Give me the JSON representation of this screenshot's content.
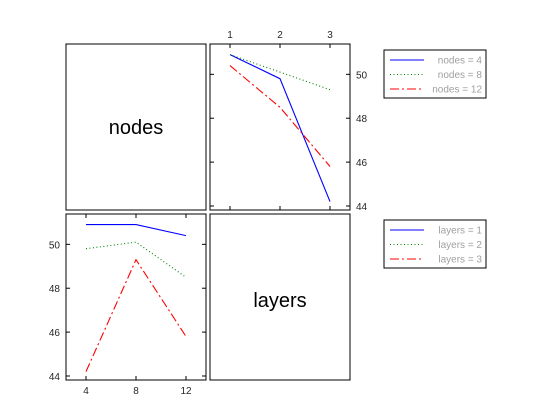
{
  "chart_data": {
    "type": "line",
    "layout": "interaction-plot-matrix",
    "diagonal_labels": [
      "nodes",
      "layers"
    ],
    "grid": false,
    "panels": [
      {
        "id": "layers-vs-nodes",
        "x": [
          1,
          2,
          3
        ],
        "xticks": [
          "1",
          "2",
          "3"
        ],
        "xtick_position": "top",
        "ylim": [
          44,
          51.2
        ],
        "yticks": [
          "44",
          "46",
          "48",
          "50"
        ],
        "ytick_position": "right",
        "series": [
          {
            "name": "nodes = 4",
            "values": [
              50.9,
              49.8,
              44.2
            ],
            "color": "#0000ff",
            "dash": "solid"
          },
          {
            "name": "nodes = 8",
            "values": [
              50.9,
              50.1,
              49.3
            ],
            "color": "#008000",
            "dash": "dotted"
          },
          {
            "name": "nodes = 12",
            "values": [
              50.4,
              48.5,
              45.8
            ],
            "color": "#ff0000",
            "dash": "dashdot"
          }
        ]
      },
      {
        "id": "nodes-vs-layers",
        "x": [
          4,
          8,
          12
        ],
        "xticks": [
          "4",
          "8",
          "12"
        ],
        "xtick_position": "bottom",
        "ylim": [
          44,
          51.2
        ],
        "yticks": [
          "44",
          "46",
          "48",
          "50"
        ],
        "ytick_position": "left",
        "series": [
          {
            "name": "layers = 1",
            "values": [
              50.9,
              50.9,
              50.4
            ],
            "color": "#0000ff",
            "dash": "solid"
          },
          {
            "name": "layers = 2",
            "values": [
              49.8,
              50.1,
              48.5
            ],
            "color": "#008000",
            "dash": "dotted"
          },
          {
            "name": "layers = 3",
            "values": [
              44.2,
              49.3,
              45.8
            ],
            "color": "#ff0000",
            "dash": "dashdot"
          }
        ]
      }
    ],
    "legends": [
      {
        "placement": "right-top",
        "entries": [
          "nodes = 4",
          "nodes = 8",
          "nodes = 12"
        ]
      },
      {
        "placement": "right-bottom",
        "entries": [
          "layers = 1",
          "layers = 2",
          "layers = 3"
        ]
      }
    ]
  }
}
